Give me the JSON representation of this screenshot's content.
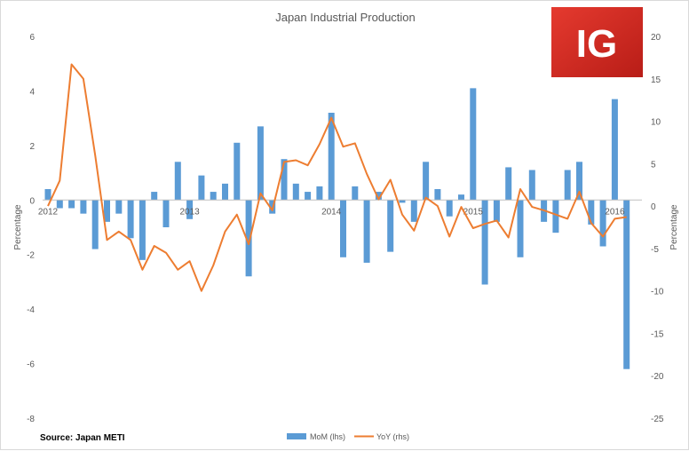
{
  "chart_data": {
    "type": "bar+line",
    "title": "Japan Industrial Production",
    "source": "Source: Japan METI",
    "logo_text": "IG",
    "colors": {
      "mom": "#5b9bd5",
      "yoy": "#ed7d31"
    },
    "left_axis": {
      "label": "Percentage",
      "ylim": [
        -8,
        6
      ],
      "ticks": [
        "-8",
        "-6",
        "-4",
        "-2",
        "0",
        "2",
        "4",
        "6"
      ]
    },
    "right_axis": {
      "label": "Percentage",
      "ylim": [
        -25,
        20
      ],
      "ticks": [
        "-25",
        "-20",
        "-15",
        "-10",
        "-5",
        "0",
        "5",
        "10",
        "15",
        "20"
      ]
    },
    "x_tick_labels": [
      {
        "label": "2012",
        "index": 0
      },
      {
        "label": "2013",
        "index": 12
      },
      {
        "label": "2014",
        "index": 24
      },
      {
        "label": "2015",
        "index": 36
      },
      {
        "label": "2016",
        "index": 48
      }
    ],
    "months": [
      "2012-01",
      "2012-02",
      "2012-03",
      "2012-04",
      "2012-05",
      "2012-06",
      "2012-07",
      "2012-08",
      "2012-09",
      "2012-10",
      "2012-11",
      "2012-12",
      "2013-01",
      "2013-02",
      "2013-03",
      "2013-04",
      "2013-05",
      "2013-06",
      "2013-07",
      "2013-08",
      "2013-09",
      "2013-10",
      "2013-11",
      "2013-12",
      "2014-01",
      "2014-02",
      "2014-03",
      "2014-04",
      "2014-05",
      "2014-06",
      "2014-07",
      "2014-08",
      "2014-09",
      "2014-10",
      "2014-11",
      "2014-12",
      "2015-01",
      "2015-02",
      "2015-03",
      "2015-04",
      "2015-05",
      "2015-06",
      "2015-07",
      "2015-08",
      "2015-09",
      "2015-10",
      "2015-11",
      "2015-12",
      "2016-01",
      "2016-02"
    ],
    "series": [
      {
        "name": "MoM (lhs)",
        "axis": "left",
        "kind": "bar",
        "values": [
          0.4,
          -0.3,
          -0.3,
          -0.5,
          -1.8,
          -0.8,
          -0.5,
          -1.4,
          -2.2,
          0.3,
          -1.0,
          1.4,
          -0.7,
          0.9,
          0.3,
          0.6,
          2.1,
          -2.8,
          2.7,
          -0.5,
          1.5,
          0.6,
          0.3,
          0.5,
          3.2,
          -2.1,
          0.5,
          -2.3,
          0.3,
          -1.9,
          -0.1,
          -0.8,
          1.4,
          0.4,
          -0.6,
          0.2,
          4.1,
          -3.1,
          -0.8,
          1.2,
          -2.1,
          1.1,
          -0.8,
          -1.2,
          1.1,
          1.4,
          -0.9,
          -1.7,
          3.7,
          -6.2
        ]
      },
      {
        "name": "YoY (rhs)",
        "axis": "right",
        "kind": "line",
        "values": [
          0.0,
          3.0,
          16.7,
          15.0,
          6.0,
          -4.0,
          -3.0,
          -4.0,
          -7.5,
          -4.7,
          -5.5,
          -7.5,
          -6.5,
          -10.0,
          -7.0,
          -3.0,
          -1.0,
          -4.5,
          1.5,
          -0.5,
          5.2,
          5.4,
          4.8,
          7.3,
          10.4,
          7.0,
          7.4,
          3.8,
          0.8,
          3.1,
          -1.0,
          -2.9,
          1.0,
          0.0,
          -3.6,
          -0.1,
          -2.6,
          -2.1,
          -1.7,
          -3.7,
          2.0,
          -0.1,
          -0.5,
          -1.0,
          -1.5,
          1.7,
          -2.0,
          -3.6,
          -1.5,
          -1.3
        ]
      }
    ]
  }
}
